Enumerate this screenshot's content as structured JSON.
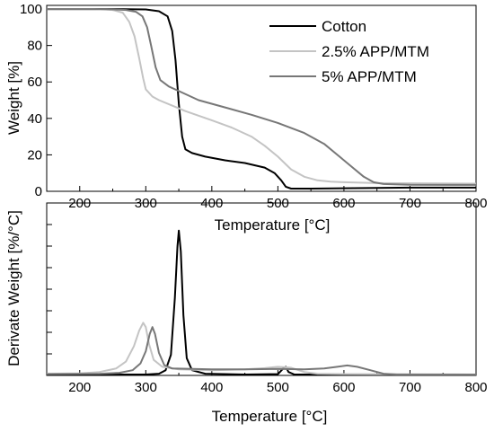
{
  "chart_data": [
    {
      "type": "line",
      "title": "",
      "xlabel": "Temperature [°C]",
      "ylabel": "Weight [%]",
      "xlim": [
        150,
        800
      ],
      "ylim": [
        0,
        102
      ],
      "xticks": [
        200,
        300,
        400,
        500,
        600,
        700,
        800
      ],
      "yticks": [
        0,
        20,
        40,
        60,
        80,
        100
      ],
      "grid": false,
      "legend": "top-right",
      "series": [
        {
          "name": "Cotton",
          "color": "#000000",
          "points": [
            [
              150,
              100
            ],
            [
              250,
              100
            ],
            [
              300,
              99.8
            ],
            [
              320,
              98.8
            ],
            [
              333,
              96
            ],
            [
              340,
              88
            ],
            [
              345,
              72
            ],
            [
              350,
              48
            ],
            [
              355,
              30
            ],
            [
              360,
              23
            ],
            [
              370,
              21
            ],
            [
              390,
              19
            ],
            [
              420,
              17
            ],
            [
              450,
              15.5
            ],
            [
              480,
              13
            ],
            [
              495,
              10
            ],
            [
              505,
              6
            ],
            [
              512,
              2.5
            ],
            [
              520,
              1.5
            ],
            [
              550,
              1.5
            ],
            [
              650,
              1.8
            ],
            [
              700,
              2
            ],
            [
              800,
              2
            ]
          ]
        },
        {
          "name": "2.5% APP/MTM",
          "color": "#c4c4c4",
          "points": [
            [
              150,
              100
            ],
            [
              220,
              100
            ],
            [
              250,
              99.5
            ],
            [
              265,
              98
            ],
            [
              275,
              93
            ],
            [
              283,
              85
            ],
            [
              290,
              73
            ],
            [
              296,
              62
            ],
            [
              300,
              56
            ],
            [
              310,
              52
            ],
            [
              320,
              50
            ],
            [
              340,
              47
            ],
            [
              360,
              44
            ],
            [
              380,
              41.5
            ],
            [
              400,
              39
            ],
            [
              430,
              35
            ],
            [
              460,
              30
            ],
            [
              480,
              25
            ],
            [
              500,
              19
            ],
            [
              520,
              12
            ],
            [
              540,
              8
            ],
            [
              560,
              6
            ],
            [
              580,
              5.3
            ],
            [
              600,
              5
            ],
            [
              650,
              4.5
            ],
            [
              800,
              4.2
            ]
          ]
        },
        {
          "name": "5% APP/MTM",
          "color": "#777777",
          "points": [
            [
              150,
              100
            ],
            [
              240,
              100
            ],
            [
              270,
              99.5
            ],
            [
              285,
              98.5
            ],
            [
              295,
              96
            ],
            [
              302,
              90
            ],
            [
              308,
              80
            ],
            [
              315,
              68
            ],
            [
              322,
              61
            ],
            [
              335,
              57.5
            ],
            [
              350,
              55
            ],
            [
              380,
              50
            ],
            [
              420,
              46
            ],
            [
              460,
              42
            ],
            [
              500,
              37.5
            ],
            [
              540,
              32
            ],
            [
              570,
              26
            ],
            [
              590,
              20
            ],
            [
              610,
              14
            ],
            [
              630,
              8
            ],
            [
              645,
              5
            ],
            [
              660,
              4
            ],
            [
              700,
              3.6
            ],
            [
              800,
              3.5
            ]
          ]
        }
      ]
    },
    {
      "type": "line",
      "title": "",
      "xlabel": "Temperature [°C]",
      "ylabel": "Derivate Weight [%/°C]",
      "xlim": [
        150,
        800
      ],
      "ylim": [
        0,
        1
      ],
      "xticks": [
        200,
        300,
        400,
        500,
        600,
        700,
        800
      ],
      "yticks": [
        0,
        0.125,
        0.25,
        0.375,
        0.5,
        0.625,
        0.75,
        0.875
      ],
      "ytick_labels_visible": false,
      "grid": false,
      "series": [
        {
          "name": "Cotton",
          "color": "#000000",
          "points": [
            [
              150,
              0.005
            ],
            [
              300,
              0.005
            ],
            [
              320,
              0.01
            ],
            [
              330,
              0.03
            ],
            [
              338,
              0.12
            ],
            [
              344,
              0.45
            ],
            [
              348,
              0.75
            ],
            [
              350,
              0.84
            ],
            [
              353,
              0.72
            ],
            [
              357,
              0.35
            ],
            [
              362,
              0.1
            ],
            [
              370,
              0.03
            ],
            [
              390,
              0.01
            ],
            [
              450,
              0.005
            ],
            [
              500,
              0.008
            ],
            [
              508,
              0.04
            ],
            [
              512,
              0.05
            ],
            [
              516,
              0.02
            ],
            [
              525,
              0.005
            ],
            [
              800,
              0.005
            ]
          ]
        },
        {
          "name": "2.5% APP/MTM",
          "color": "#c4c4c4",
          "points": [
            [
              150,
              0.01
            ],
            [
              200,
              0.012
            ],
            [
              230,
              0.02
            ],
            [
              255,
              0.04
            ],
            [
              270,
              0.08
            ],
            [
              282,
              0.17
            ],
            [
              290,
              0.26
            ],
            [
              296,
              0.305
            ],
            [
              300,
              0.28
            ],
            [
              305,
              0.18
            ],
            [
              312,
              0.09
            ],
            [
              325,
              0.05
            ],
            [
              350,
              0.035
            ],
            [
              400,
              0.03
            ],
            [
              450,
              0.035
            ],
            [
              480,
              0.042
            ],
            [
              500,
              0.05
            ],
            [
              520,
              0.045
            ],
            [
              540,
              0.02
            ],
            [
              560,
              0.01
            ],
            [
              600,
              0.008
            ],
            [
              800,
              0.005
            ]
          ]
        },
        {
          "name": "5% APP/MTM",
          "color": "#777777",
          "points": [
            [
              150,
              0.008
            ],
            [
              230,
              0.01
            ],
            [
              260,
              0.015
            ],
            [
              280,
              0.03
            ],
            [
              292,
              0.07
            ],
            [
              300,
              0.14
            ],
            [
              306,
              0.24
            ],
            [
              310,
              0.28
            ],
            [
              314,
              0.24
            ],
            [
              320,
              0.13
            ],
            [
              328,
              0.06
            ],
            [
              340,
              0.04
            ],
            [
              400,
              0.035
            ],
            [
              450,
              0.035
            ],
            [
              500,
              0.038
            ],
            [
              540,
              0.035
            ],
            [
              570,
              0.04
            ],
            [
              590,
              0.05
            ],
            [
              605,
              0.058
            ],
            [
              620,
              0.05
            ],
            [
              640,
              0.03
            ],
            [
              660,
              0.01
            ],
            [
              680,
              0.005
            ],
            [
              800,
              0.005
            ]
          ]
        }
      ]
    }
  ]
}
